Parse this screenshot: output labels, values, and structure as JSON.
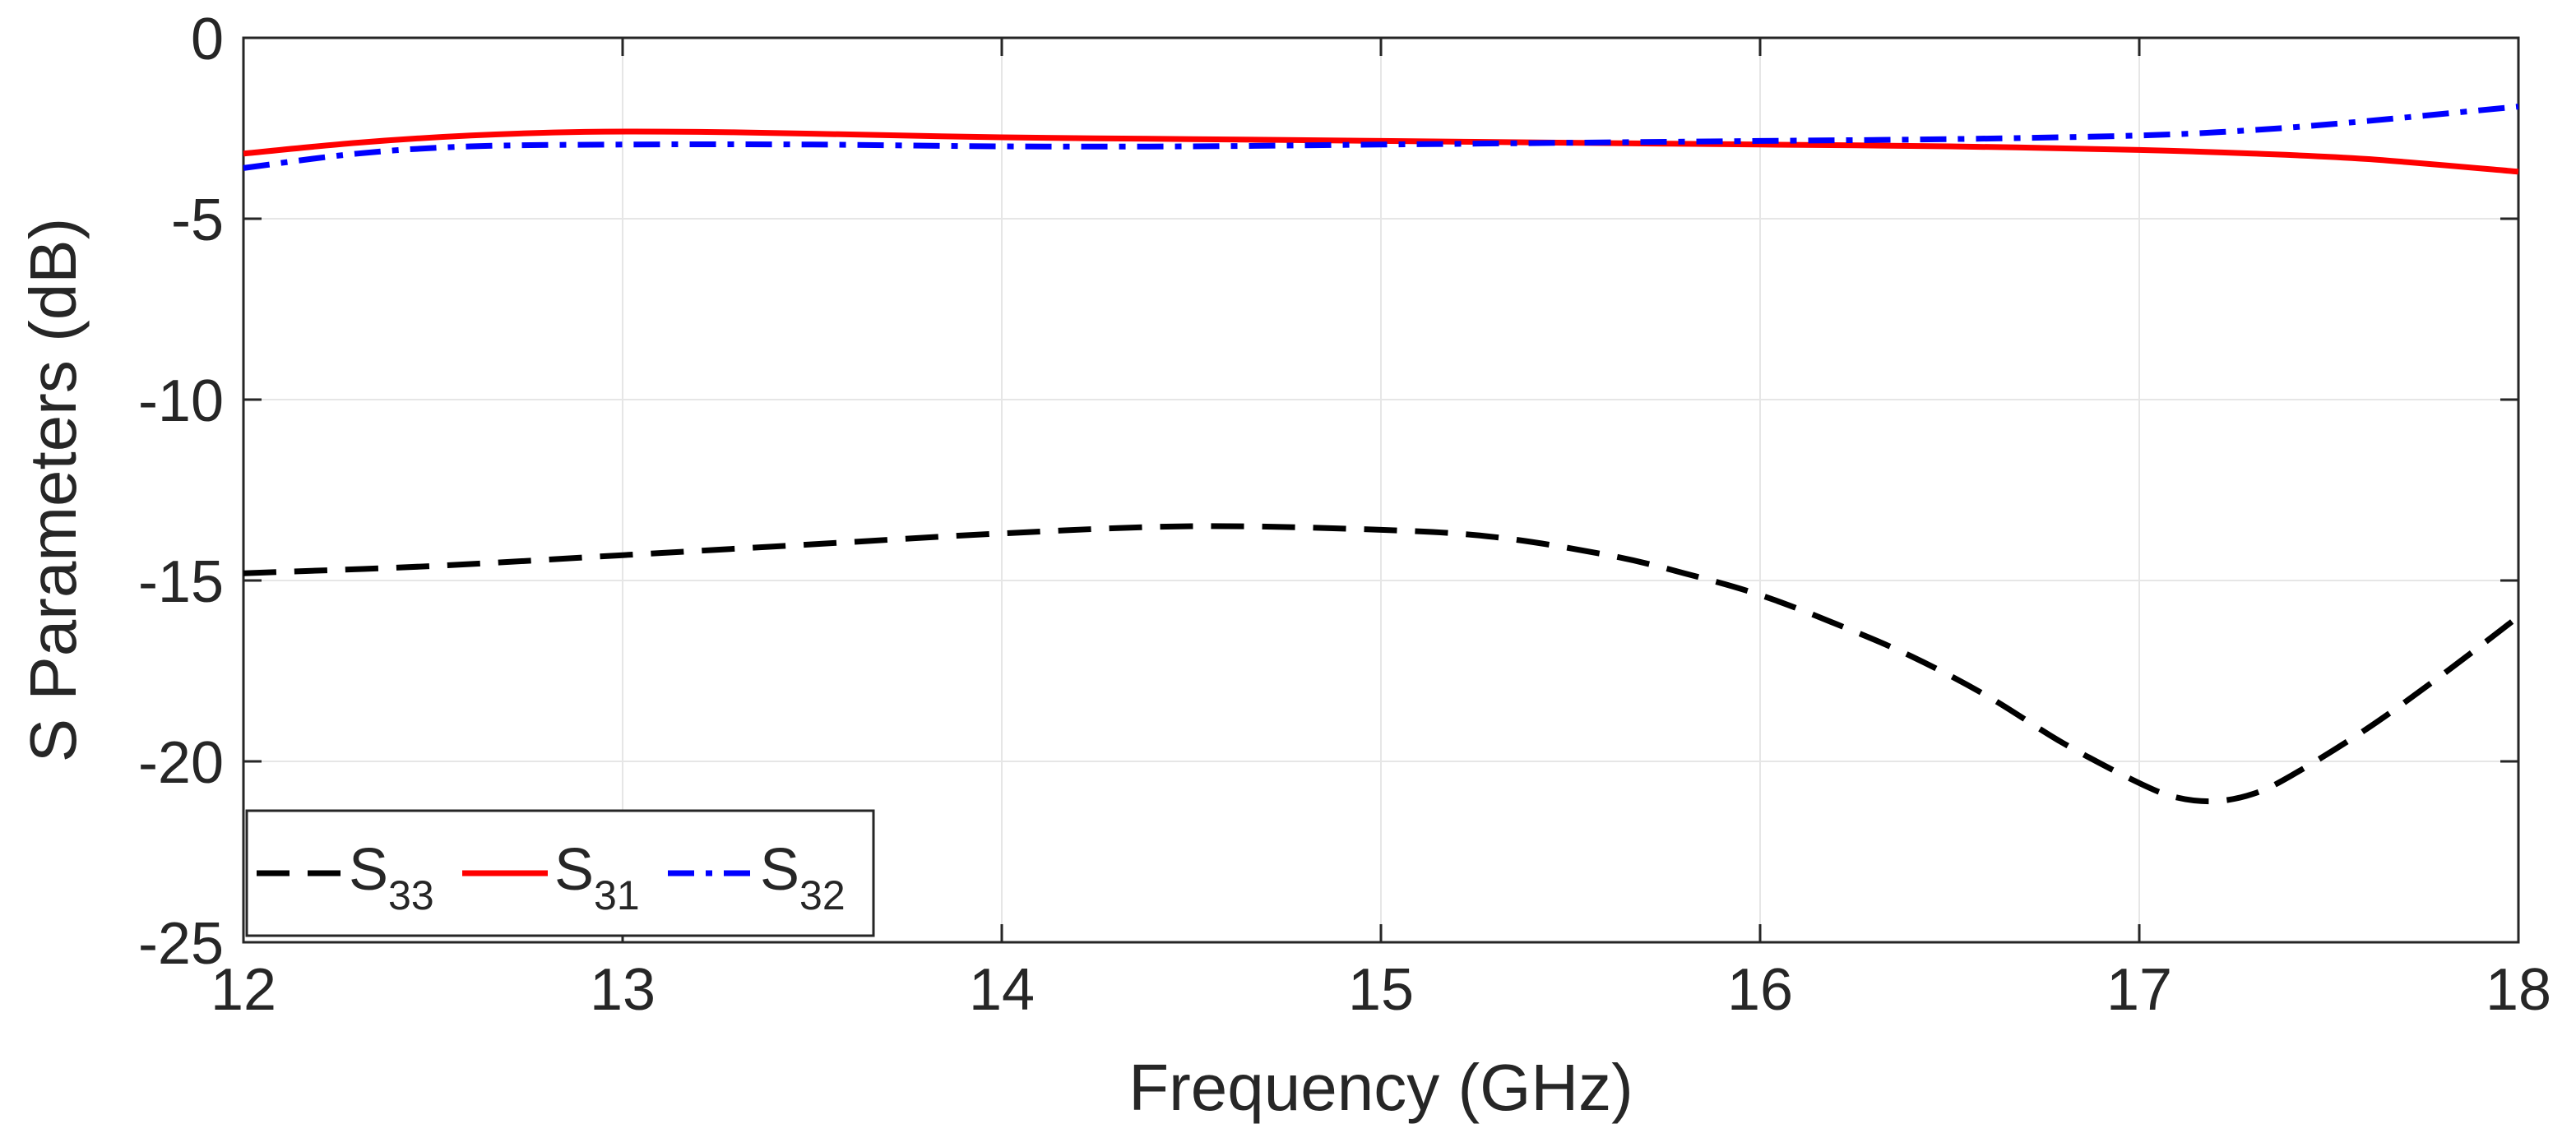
{
  "chart_data": {
    "type": "line",
    "title": "",
    "xlabel": "Frequency (GHz)",
    "ylabel": "S Parameters (dB)",
    "xlim": [
      12,
      18
    ],
    "ylim": [
      -25,
      0
    ],
    "xticks": [
      12,
      13,
      14,
      15,
      16,
      17,
      18
    ],
    "yticks": [
      0,
      -5,
      -10,
      -15,
      -20,
      -25
    ],
    "xtick_labels": [
      "12",
      "13",
      "14",
      "15",
      "16",
      "17",
      "18"
    ],
    "ytick_labels": [
      "0",
      "-5",
      "-10",
      "-15",
      "-20",
      "-25"
    ],
    "grid": true,
    "legend_position": "bottom-left",
    "legend_orientation": "horizontal",
    "series": [
      {
        "name": "S33",
        "label_main": "S",
        "label_sub": "33",
        "color": "#000000",
        "line_style": "dashed",
        "x": [
          12.0,
          12.5,
          13.0,
          13.5,
          14.0,
          14.5,
          15.0,
          15.3,
          15.6,
          15.8,
          16.0,
          16.2,
          16.4,
          16.6,
          16.8,
          17.0,
          17.1,
          17.2,
          17.3,
          17.4,
          17.6,
          17.8,
          18.0
        ],
        "y": [
          -14.8,
          -14.6,
          -14.3,
          -14.0,
          -13.7,
          -13.5,
          -13.6,
          -13.8,
          -14.3,
          -14.8,
          -15.4,
          -16.2,
          -17.1,
          -18.2,
          -19.5,
          -20.6,
          -21.0,
          -21.1,
          -20.9,
          -20.4,
          -19.1,
          -17.6,
          -16.0
        ]
      },
      {
        "name": "S31",
        "label_main": "S",
        "label_sub": "31",
        "color": "#ff0000",
        "line_style": "solid",
        "x": [
          12.0,
          12.3,
          12.6,
          12.9,
          13.2,
          13.5,
          14.0,
          14.5,
          15.0,
          15.5,
          16.0,
          16.5,
          17.0,
          17.3,
          17.6,
          18.0
        ],
        "y": [
          -3.2,
          -2.9,
          -2.7,
          -2.6,
          -2.6,
          -2.65,
          -2.75,
          -2.8,
          -2.85,
          -2.9,
          -2.95,
          -3.0,
          -3.1,
          -3.2,
          -3.35,
          -3.7
        ]
      },
      {
        "name": "S32",
        "label_main": "S",
        "label_sub": "32",
        "color": "#0000ff",
        "line_style": "dash-dot",
        "x": [
          12.0,
          12.3,
          12.6,
          13.0,
          13.5,
          14.0,
          14.5,
          15.0,
          15.5,
          16.0,
          16.5,
          17.0,
          17.3,
          17.6,
          18.0
        ],
        "y": [
          -3.6,
          -3.2,
          -3.0,
          -2.95,
          -2.95,
          -3.0,
          -3.0,
          -2.95,
          -2.9,
          -2.85,
          -2.8,
          -2.7,
          -2.55,
          -2.3,
          -1.9
        ]
      }
    ]
  }
}
